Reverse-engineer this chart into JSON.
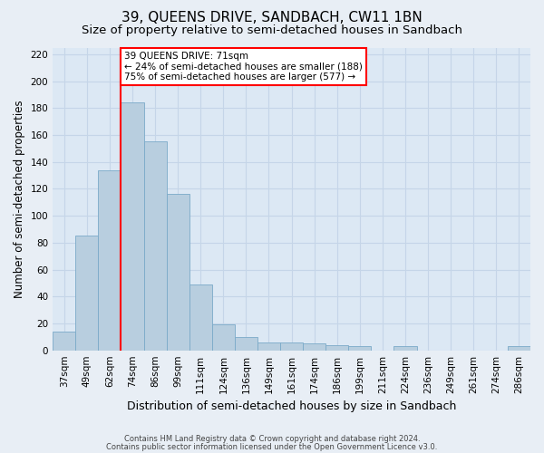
{
  "title": "39, QUEENS DRIVE, SANDBACH, CW11 1BN",
  "subtitle": "Size of property relative to semi-detached houses in Sandbach",
  "xlabel": "Distribution of semi-detached houses by size in Sandbach",
  "ylabel": "Number of semi-detached properties",
  "categories": [
    "37sqm",
    "49sqm",
    "62sqm",
    "74sqm",
    "86sqm",
    "99sqm",
    "111sqm",
    "124sqm",
    "136sqm",
    "149sqm",
    "161sqm",
    "174sqm",
    "186sqm",
    "199sqm",
    "211sqm",
    "224sqm",
    "236sqm",
    "249sqm",
    "261sqm",
    "274sqm",
    "286sqm"
  ],
  "values": [
    14,
    85,
    134,
    184,
    155,
    116,
    49,
    19,
    10,
    6,
    6,
    5,
    4,
    3,
    0,
    3,
    0,
    0,
    0,
    0,
    3
  ],
  "bar_color": "#b8cedf",
  "bar_edge_color": "#7baac8",
  "red_line_x": 3,
  "annotation_line1": "39 QUEENS DRIVE: 71sqm",
  "annotation_line2": "← 24% of semi-detached houses are smaller (188)",
  "annotation_line3": "75% of semi-detached houses are larger (577) →",
  "ylim": [
    0,
    225
  ],
  "yticks": [
    0,
    20,
    40,
    60,
    80,
    100,
    120,
    140,
    160,
    180,
    200,
    220
  ],
  "footnote1": "Contains HM Land Registry data © Crown copyright and database right 2024.",
  "footnote2": "Contains public sector information licensed under the Open Government Licence v3.0.",
  "background_color": "#e8eef5",
  "plot_bg_color": "#dce8f4",
  "grid_color": "#c5d5e8",
  "title_fontsize": 11,
  "subtitle_fontsize": 9.5,
  "xlabel_fontsize": 9,
  "ylabel_fontsize": 8.5,
  "tick_fontsize": 7.5,
  "annotation_fontsize": 7.5
}
